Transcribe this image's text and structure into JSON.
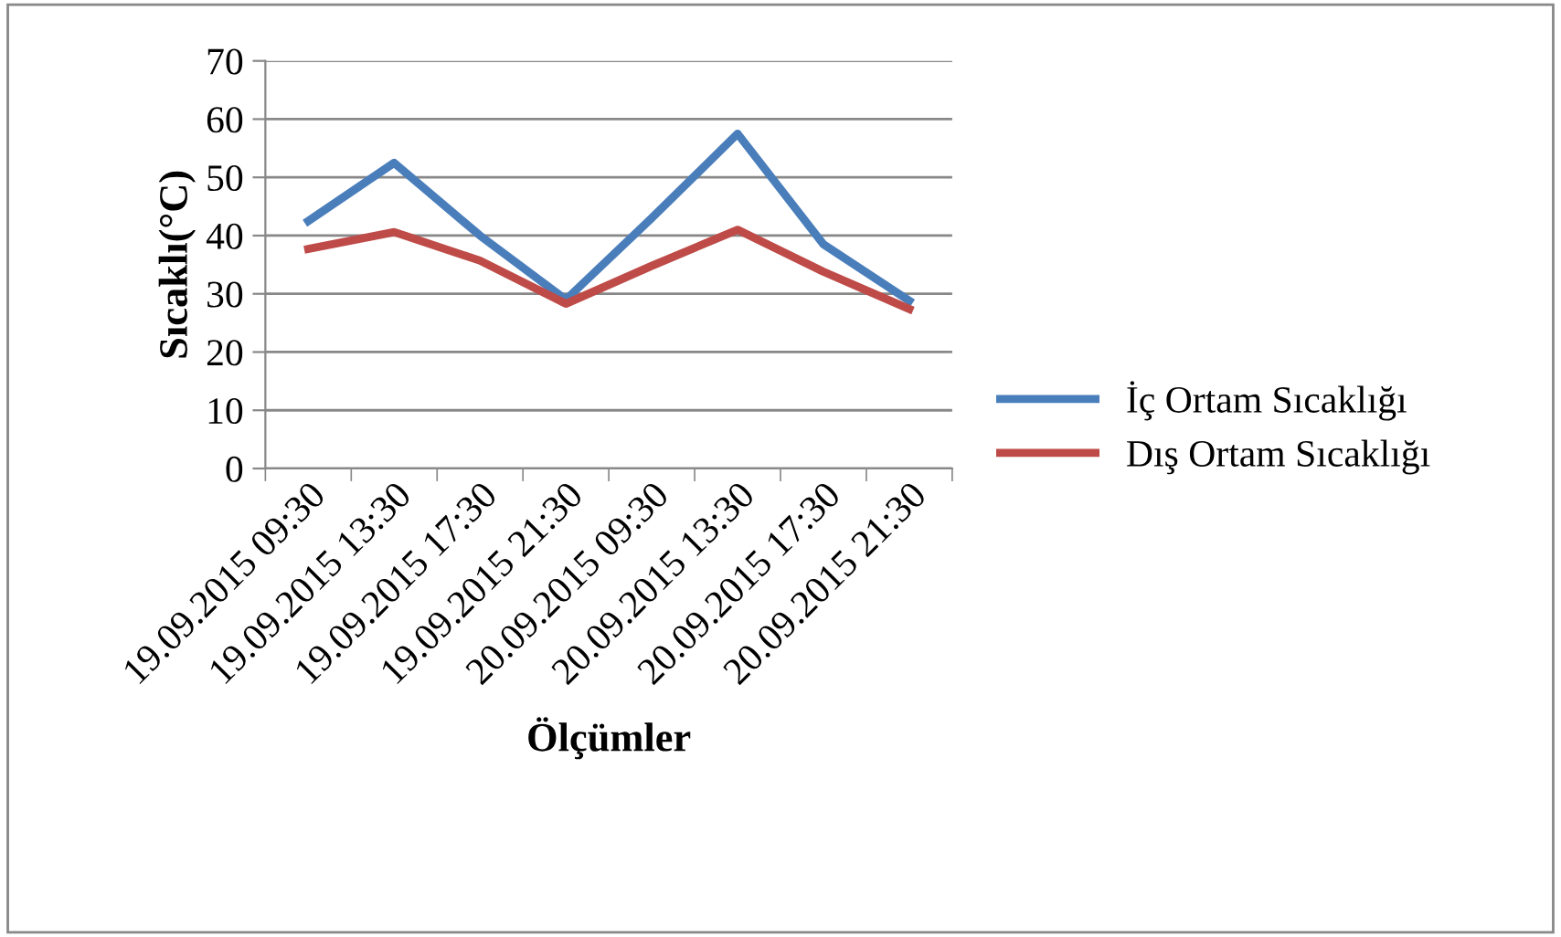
{
  "chart_data": {
    "type": "line",
    "xlabel": "Ölçümler",
    "ylabel": "Sıcaklı(°C)",
    "categories": [
      "19.09.2015 09:30",
      "19.09.2015 13:30",
      "19.09.2015 17:30",
      "19.09.2015 21:30",
      "20.09.2015 09:30",
      "20.09.2015 13:30",
      "20.09.2015 17:30",
      "20.09.2015 21:30"
    ],
    "series": [
      {
        "name": "İç Ortam Sıcaklığı",
        "color": "#4a7ebb",
        "values": [
          42.5,
          52.5,
          40,
          29,
          43,
          57.5,
          38.5,
          28.8
        ]
      },
      {
        "name": "Dış Ortam Sıcaklığı",
        "color": "#be4b48",
        "values": [
          37.7,
          40.6,
          35.7,
          28.3,
          34.8,
          41,
          33.8,
          27.4
        ]
      }
    ],
    "ylim": [
      0,
      70
    ],
    "yticks": [
      0,
      10,
      20,
      30,
      40,
      50,
      60,
      70
    ],
    "grid": "y",
    "legend": "right",
    "marker": "none",
    "line_style": "solid"
  }
}
